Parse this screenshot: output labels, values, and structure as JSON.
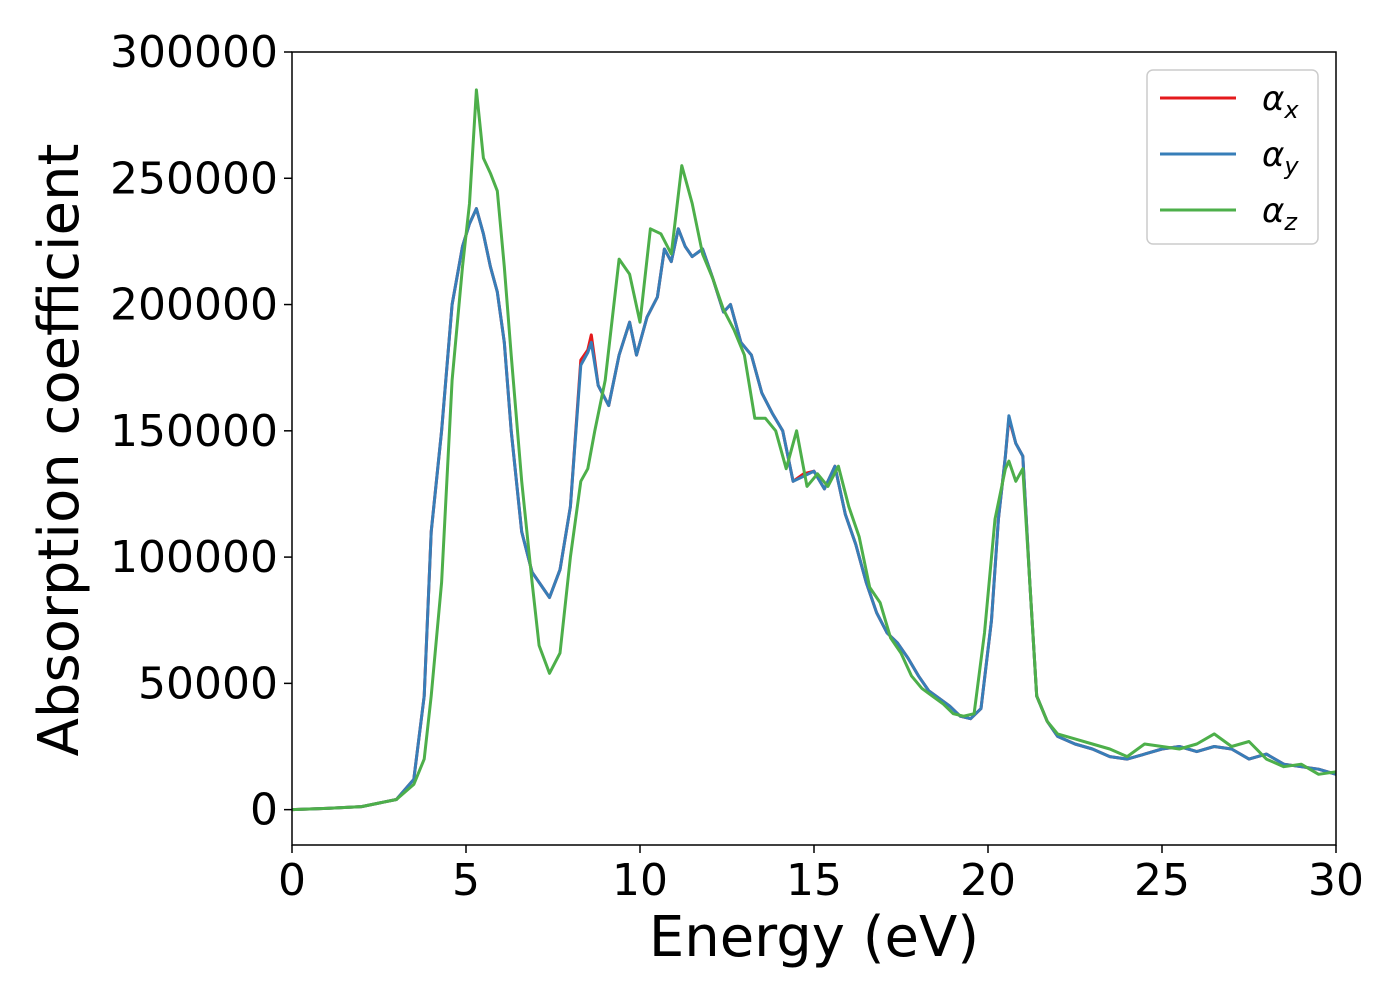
{
  "chart_data": {
    "type": "line",
    "xlabel": "Energy (eV)",
    "ylabel": "Absorption coefficient",
    "xlim": [
      0,
      30
    ],
    "ylim": [
      -14000,
      300000
    ],
    "xticks": [
      "0",
      "5",
      "10",
      "15",
      "20",
      "25",
      "30"
    ],
    "yticks": [
      "0",
      "50000",
      "100000",
      "150000",
      "200000",
      "250000",
      "300000"
    ],
    "grid": false,
    "legend": {
      "placement": "top-right"
    },
    "series": [
      {
        "name": "αx",
        "name_base": "α",
        "name_sub": "x",
        "color": "#e41a1c",
        "x": [
          0,
          1,
          2,
          3,
          3.5,
          3.8,
          4.0,
          4.3,
          4.6,
          4.9,
          5.1,
          5.3,
          5.5,
          5.7,
          5.9,
          6.1,
          6.3,
          6.6,
          6.9,
          7.1,
          7.4,
          7.7,
          8.0,
          8.3,
          8.5,
          8.6,
          8.8,
          9.1,
          9.4,
          9.7,
          9.9,
          10.2,
          10.5,
          10.7,
          10.9,
          11.1,
          11.3,
          11.5,
          11.8,
          12.1,
          12.4,
          12.6,
          12.9,
          13.2,
          13.5,
          13.8,
          14.1,
          14.4,
          14.7,
          15.0,
          15.3,
          15.6,
          15.9,
          16.2,
          16.5,
          16.8,
          17.1,
          17.4,
          17.7,
          18.0,
          18.3,
          18.6,
          18.9,
          19.2,
          19.5,
          19.8,
          20.1,
          20.3,
          20.5,
          20.6,
          20.8,
          21.0,
          21.2,
          21.4,
          21.7,
          22.0,
          22.5,
          23.0,
          23.5,
          24.0,
          24.5,
          25.0,
          25.5,
          26.0,
          26.5,
          27.0,
          27.5,
          28.0,
          28.5,
          29.0,
          29.5,
          30.0
        ],
        "y": [
          0,
          500,
          1200,
          4000,
          12000,
          45000,
          110000,
          150000,
          200000,
          223000,
          232000,
          238000,
          228000,
          215000,
          205000,
          185000,
          150000,
          110000,
          94000,
          90000,
          84000,
          95000,
          120000,
          178000,
          182000,
          188000,
          168000,
          160000,
          180000,
          193000,
          180000,
          195000,
          203000,
          222000,
          217000,
          230000,
          223000,
          219000,
          222000,
          210000,
          197000,
          200000,
          185000,
          180000,
          165000,
          157000,
          150000,
          130000,
          133000,
          134000,
          127000,
          136000,
          117000,
          105000,
          90000,
          78000,
          70000,
          66000,
          60000,
          53000,
          47000,
          44000,
          41000,
          37000,
          36000,
          40000,
          75000,
          115000,
          140000,
          155000,
          145000,
          140000,
          90000,
          45000,
          35000,
          29000,
          26000,
          24000,
          21000,
          20000,
          22000,
          24000,
          25000,
          23000,
          25000,
          24000,
          20000,
          22000,
          18000,
          17000,
          16000,
          14000
        ]
      },
      {
        "name": "αy",
        "name_base": "α",
        "name_sub": "y",
        "color": "#377eb8",
        "x": [
          0,
          1,
          2,
          3,
          3.5,
          3.8,
          4.0,
          4.3,
          4.6,
          4.9,
          5.1,
          5.3,
          5.5,
          5.7,
          5.9,
          6.1,
          6.3,
          6.6,
          6.9,
          7.1,
          7.4,
          7.7,
          8.0,
          8.3,
          8.5,
          8.6,
          8.8,
          9.1,
          9.4,
          9.7,
          9.9,
          10.2,
          10.5,
          10.7,
          10.9,
          11.1,
          11.3,
          11.5,
          11.8,
          12.1,
          12.4,
          12.6,
          12.9,
          13.2,
          13.5,
          13.8,
          14.1,
          14.4,
          14.7,
          15.0,
          15.3,
          15.6,
          15.9,
          16.2,
          16.5,
          16.8,
          17.1,
          17.4,
          17.7,
          18.0,
          18.3,
          18.6,
          18.9,
          19.2,
          19.5,
          19.8,
          20.1,
          20.3,
          20.5,
          20.6,
          20.8,
          21.0,
          21.2,
          21.4,
          21.7,
          22.0,
          22.5,
          23.0,
          23.5,
          24.0,
          24.5,
          25.0,
          25.5,
          26.0,
          26.5,
          27.0,
          27.5,
          28.0,
          28.5,
          29.0,
          29.5,
          30.0
        ],
        "y": [
          0,
          500,
          1200,
          4000,
          12000,
          45000,
          110000,
          150000,
          200000,
          223000,
          232000,
          238000,
          228000,
          215000,
          205000,
          185000,
          150000,
          110000,
          94000,
          90000,
          84000,
          95000,
          120000,
          176000,
          181000,
          185000,
          168000,
          160000,
          180000,
          193000,
          180000,
          195000,
          203000,
          222000,
          217000,
          230000,
          223000,
          219000,
          222000,
          210000,
          197000,
          200000,
          185000,
          180000,
          165000,
          157000,
          150000,
          130000,
          132000,
          134000,
          127000,
          136000,
          117000,
          105000,
          90000,
          78000,
          70000,
          66000,
          60000,
          53000,
          47000,
          44000,
          41000,
          37000,
          36000,
          40000,
          75000,
          115000,
          140000,
          156000,
          145000,
          140000,
          90000,
          45000,
          35000,
          29000,
          26000,
          24000,
          21000,
          20000,
          22000,
          24000,
          25000,
          23000,
          25000,
          24000,
          20000,
          22000,
          18000,
          17000,
          16000,
          14000
        ]
      },
      {
        "name": "αz",
        "name_base": "α",
        "name_sub": "z",
        "color": "#4daf4a",
        "x": [
          0,
          1,
          2,
          3,
          3.5,
          3.8,
          4.0,
          4.3,
          4.6,
          4.9,
          5.1,
          5.3,
          5.5,
          5.7,
          5.9,
          6.1,
          6.3,
          6.6,
          6.9,
          7.1,
          7.4,
          7.7,
          8.0,
          8.3,
          8.5,
          8.7,
          9.0,
          9.4,
          9.7,
          10.0,
          10.3,
          10.6,
          10.9,
          11.2,
          11.5,
          11.8,
          12.1,
          12.4,
          12.7,
          13.0,
          13.3,
          13.6,
          13.9,
          14.2,
          14.5,
          14.8,
          15.1,
          15.4,
          15.7,
          16.0,
          16.3,
          16.6,
          16.9,
          17.2,
          17.5,
          17.8,
          18.1,
          18.4,
          18.7,
          19.0,
          19.3,
          19.6,
          19.9,
          20.2,
          20.5,
          20.6,
          20.8,
          21.0,
          21.2,
          21.4,
          21.7,
          22.0,
          22.5,
          23.0,
          23.5,
          24.0,
          24.5,
          25.0,
          25.5,
          26.0,
          26.5,
          27.0,
          27.5,
          28.0,
          28.5,
          29.0,
          29.5,
          30.0
        ],
        "y": [
          0,
          500,
          1200,
          4000,
          10000,
          20000,
          45000,
          90000,
          170000,
          215000,
          240000,
          285000,
          258000,
          252000,
          245000,
          215000,
          180000,
          130000,
          90000,
          65000,
          54000,
          62000,
          100000,
          130000,
          135000,
          150000,
          170000,
          218000,
          212000,
          193000,
          230000,
          228000,
          220000,
          255000,
          240000,
          220000,
          210000,
          198000,
          190000,
          180000,
          155000,
          155000,
          150000,
          135000,
          150000,
          128000,
          133000,
          128000,
          136000,
          120000,
          108000,
          88000,
          82000,
          68000,
          62000,
          53000,
          48000,
          45000,
          42000,
          38000,
          37000,
          38000,
          70000,
          115000,
          135000,
          138000,
          130000,
          135000,
          90000,
          45000,
          35000,
          30000,
          28000,
          26000,
          24000,
          21000,
          26000,
          25000,
          24000,
          26000,
          30000,
          25000,
          27000,
          20000,
          17000,
          18000,
          14000,
          15000
        ]
      }
    ]
  }
}
